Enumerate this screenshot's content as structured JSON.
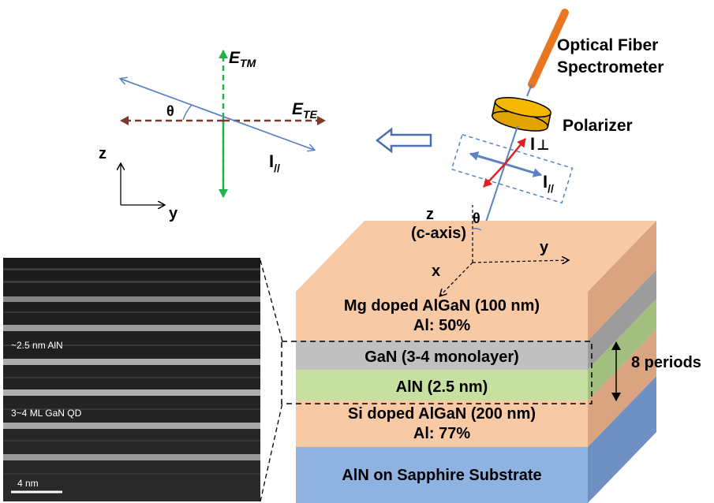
{
  "polarization_diagram": {
    "e_tm": "E",
    "e_tm_sub": "TM",
    "e_te": "E",
    "e_te_sub": "TE",
    "theta": "θ",
    "i_parallel": "I",
    "i_parallel_sub": "//",
    "axis_z": "z",
    "axis_y": "y"
  },
  "optics": {
    "fiber_line1": "Optical Fiber",
    "fiber_line2": "Spectrometer",
    "polarizer": "Polarizer",
    "i_perp": "I",
    "i_perp_sub": "⊥",
    "i_par": "I",
    "i_par_sub": "//"
  },
  "sample_axes": {
    "z": "z",
    "c_axis": "(c-axis)",
    "theta": "θ",
    "y": "y",
    "x": "x"
  },
  "layers": {
    "top_line1": "Mg doped AlGaN (100 nm)",
    "top_line2": "Al: 50%",
    "gan": "GaN (3-4 monolayer)",
    "aln": "AlN (2.5 nm)",
    "bottom_line1": "Si doped AlGaN (200 nm)",
    "bottom_line2": "Al: 77%",
    "substrate": "AlN on Sapphire Substrate",
    "periods": "8 periods"
  },
  "tem_image": {
    "aln_label": "~2.5 nm AlN",
    "qd_label": "3~4 ML GaN QD",
    "scale": "4 nm"
  },
  "colors": {
    "orange_layer": "#f8c9a5",
    "gray_layer": "#c0c0c0",
    "green_layer": "#c7dfa0",
    "blue_substrate": "#8fb2e0",
    "fiber": "#e87722",
    "polarizer": "#f5b800",
    "arrow_blue": "#5b82c5",
    "arrow_red": "#e02020",
    "e_te_color": "#7a3b2e",
    "e_tm_color": "#22b14c"
  }
}
